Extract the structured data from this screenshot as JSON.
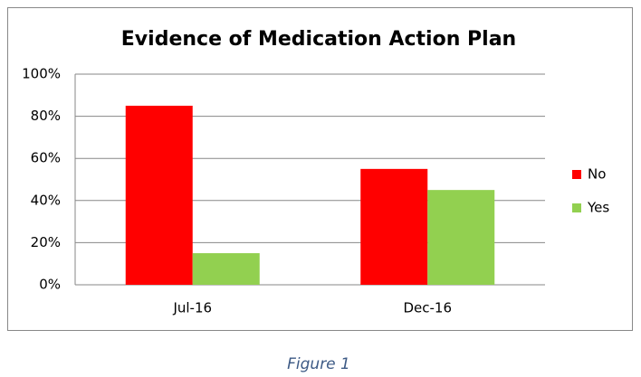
{
  "chart_data": {
    "type": "bar",
    "title": "Evidence of Medication Action Plan",
    "categories": [
      "Jul-16",
      "Dec-16"
    ],
    "series": [
      {
        "name": "No",
        "color": "#ff0000",
        "values": [
          85,
          55
        ]
      },
      {
        "name": "Yes",
        "color": "#92d050",
        "values": [
          15,
          45
        ]
      }
    ],
    "ylim": [
      0,
      100
    ],
    "yticks": [
      {
        "value": 0,
        "label": "0%"
      },
      {
        "value": 20,
        "label": "20%"
      },
      {
        "value": 40,
        "label": "40%"
      },
      {
        "value": 60,
        "label": "60%"
      },
      {
        "value": 80,
        "label": "80%"
      },
      {
        "value": 100,
        "label": "100%"
      }
    ],
    "grid": true,
    "legend": "right"
  },
  "caption": "Figure 1"
}
